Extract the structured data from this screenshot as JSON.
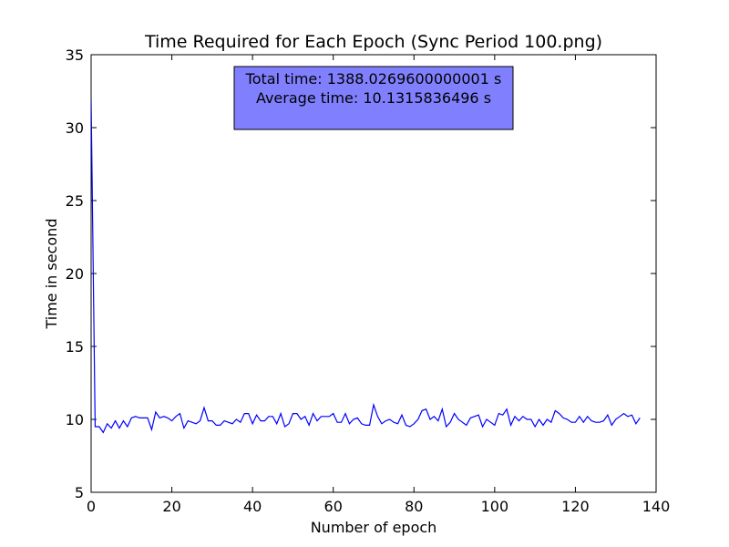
{
  "chart_data": {
    "type": "line",
    "title": "Time Required for Each Epoch (Sync Period 100.png)",
    "xlabel": "Number of epoch",
    "ylabel": "Time in second",
    "xlim": [
      0,
      140
    ],
    "ylim": [
      5,
      35
    ],
    "xticks": [
      0,
      20,
      40,
      60,
      80,
      100,
      120,
      140
    ],
    "yticks": [
      5,
      10,
      15,
      20,
      25,
      30,
      35
    ],
    "grid": false,
    "line_color": "#0000ff",
    "annotation": {
      "lines": [
        "Total time: 1388.0269600000001 s",
        "Average time: 10.1315836496 s"
      ],
      "box_color": "#8080ff",
      "placement": "top-center"
    },
    "series": [
      {
        "x": [
          0,
          1,
          2,
          3,
          4,
          5,
          6,
          7,
          8,
          9,
          10,
          11,
          12,
          13,
          14,
          15,
          16,
          17,
          18,
          19,
          20,
          21,
          22,
          23,
          24,
          25,
          26,
          27,
          28,
          29,
          30,
          31,
          32,
          33,
          34,
          35,
          36,
          37,
          38,
          39,
          40,
          41,
          42,
          43,
          44,
          45,
          46,
          47,
          48,
          49,
          50,
          51,
          52,
          53,
          54,
          55,
          56,
          57,
          58,
          59,
          60,
          61,
          62,
          63,
          64,
          65,
          66,
          67,
          68,
          69,
          70,
          71,
          72,
          73,
          74,
          75,
          76,
          77,
          78,
          79,
          80,
          81,
          82,
          83,
          84,
          85,
          86,
          87,
          88,
          89,
          90,
          91,
          92,
          93,
          94,
          95,
          96,
          97,
          98,
          99,
          100,
          101,
          102,
          103,
          104,
          105,
          106,
          107,
          108,
          109,
          110,
          111,
          112,
          113,
          114,
          115,
          116,
          117,
          118,
          119,
          120,
          121,
          122,
          123,
          124,
          125,
          126,
          127,
          128,
          129,
          130,
          131,
          132,
          133,
          134,
          135,
          136
        ],
        "values": [
          31.9,
          9.5,
          9.5,
          9.1,
          9.7,
          9.4,
          9.9,
          9.4,
          9.9,
          9.5,
          10.1,
          10.2,
          10.1,
          10.1,
          10.1,
          9.3,
          10.5,
          10.1,
          10.2,
          10.1,
          9.9,
          10.2,
          10.4,
          9.4,
          9.9,
          9.8,
          9.7,
          9.9,
          10.8,
          9.9,
          9.9,
          9.6,
          9.6,
          9.9,
          9.8,
          9.7,
          10.0,
          9.8,
          10.4,
          10.4,
          9.7,
          10.3,
          9.9,
          9.9,
          10.2,
          10.2,
          9.7,
          10.4,
          9.5,
          9.7,
          10.4,
          10.4,
          10.0,
          10.2,
          9.6,
          10.4,
          9.9,
          10.2,
          10.2,
          10.2,
          10.4,
          9.8,
          9.8,
          10.4,
          9.7,
          10.0,
          10.1,
          9.7,
          9.6,
          9.6,
          11.0,
          10.2,
          9.7,
          9.9,
          10.0,
          9.8,
          9.7,
          10.3,
          9.6,
          9.5,
          9.7,
          10.0,
          10.6,
          10.7,
          10.0,
          10.2,
          9.9,
          10.7,
          9.5,
          9.8,
          10.4,
          10.0,
          9.8,
          9.6,
          10.1,
          10.2,
          10.3,
          9.5,
          10.0,
          9.8,
          9.6,
          10.4,
          10.3,
          10.7,
          9.6,
          10.2,
          9.9,
          10.2,
          10.0,
          10.0,
          9.5,
          10.0,
          9.6,
          10.0,
          9.8,
          10.6,
          10.4,
          10.1,
          10.0,
          9.8,
          9.8,
          10.2,
          9.8,
          10.2,
          9.9,
          9.8,
          9.8,
          9.9,
          10.3,
          9.6,
          10.0,
          10.2,
          10.4,
          10.2,
          10.3,
          9.7,
          10.1
        ]
      }
    ]
  }
}
